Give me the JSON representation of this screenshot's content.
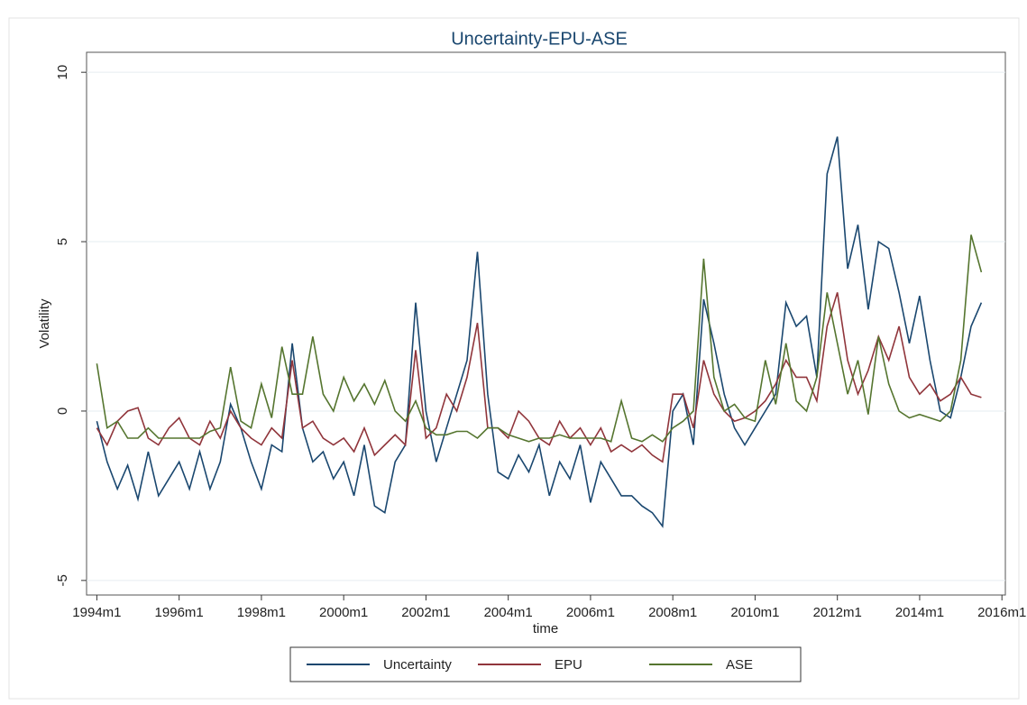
{
  "chart_data": {
    "type": "line",
    "title": "Uncertainty-EPU-ASE",
    "x_label": "time",
    "y_label": "Volatility",
    "x": [
      408,
      411,
      414,
      417,
      420,
      423,
      426,
      429,
      432,
      435,
      438,
      441,
      444,
      447,
      450,
      453,
      456,
      459,
      462,
      465,
      468,
      471,
      474,
      477,
      480,
      483,
      486,
      489,
      492,
      495,
      498,
      501,
      504,
      507,
      510,
      513,
      516,
      519,
      522,
      525,
      528,
      531,
      534,
      537,
      540,
      543,
      546,
      549,
      552,
      555,
      558,
      561,
      564,
      567,
      570,
      573,
      576,
      579,
      582,
      585,
      588,
      591,
      594,
      597,
      600,
      603,
      606,
      609,
      612,
      615,
      618,
      621,
      624,
      627,
      630,
      633,
      636,
      639,
      642,
      645,
      648,
      651,
      654,
      657,
      660,
      663,
      666
    ],
    "series": [
      {
        "name": "Uncertainty",
        "color": "#1a476f",
        "values": [
          -0.3,
          -1.5,
          -2.3,
          -1.6,
          -2.6,
          -1.2,
          -2.5,
          -2.0,
          -1.5,
          -2.3,
          -1.2,
          -2.3,
          -1.5,
          0.2,
          -0.5,
          -1.5,
          -2.3,
          -1.0,
          -1.2,
          2.0,
          -0.5,
          -1.5,
          -1.2,
          -2.0,
          -1.5,
          -2.5,
          -1.0,
          -2.8,
          -3.0,
          -1.5,
          -1.0,
          3.2,
          0.0,
          -1.5,
          -0.5,
          0.5,
          1.5,
          4.7,
          0.5,
          -1.8,
          -2.0,
          -1.3,
          -1.8,
          -1.0,
          -2.5,
          -1.5,
          -2.0,
          -1.0,
          -2.7,
          -1.5,
          -2.0,
          -2.5,
          -2.5,
          -2.8,
          -3.0,
          -3.4,
          0.0,
          0.5,
          -1.0,
          3.3,
          2.0,
          0.5,
          -0.5,
          -1.0,
          -0.5,
          0.0,
          0.5,
          3.2,
          2.5,
          2.8,
          1.0,
          7.0,
          8.1,
          4.2,
          5.5,
          3.0,
          5.0,
          4.8,
          3.5,
          2.0,
          3.4,
          1.5,
          0.0,
          -0.2,
          1.0,
          2.5,
          3.2
        ]
      },
      {
        "name": "EPU",
        "color": "#90353b",
        "values": [
          -0.5,
          -1.0,
          -0.3,
          0.0,
          0.1,
          -0.8,
          -1.0,
          -0.5,
          -0.2,
          -0.8,
          -1.0,
          -0.3,
          -0.8,
          0.0,
          -0.5,
          -0.8,
          -1.0,
          -0.5,
          -0.8,
          1.5,
          -0.5,
          -0.3,
          -0.8,
          -1.0,
          -0.8,
          -1.2,
          -0.5,
          -1.3,
          -1.0,
          -0.7,
          -1.0,
          1.8,
          -0.8,
          -0.5,
          0.5,
          0.0,
          1.0,
          2.6,
          -0.5,
          -0.5,
          -0.8,
          0.0,
          -0.3,
          -0.8,
          -1.0,
          -0.3,
          -0.8,
          -0.5,
          -1.0,
          -0.5,
          -1.2,
          -1.0,
          -1.2,
          -1.0,
          -1.3,
          -1.5,
          0.5,
          0.5,
          -0.5,
          1.5,
          0.5,
          0.0,
          -0.3,
          -0.2,
          0.0,
          0.3,
          0.8,
          1.5,
          1.0,
          1.0,
          0.3,
          2.5,
          3.5,
          1.5,
          0.5,
          1.2,
          2.2,
          1.5,
          2.5,
          1.0,
          0.5,
          0.8,
          0.3,
          0.5,
          1.0,
          0.5,
          0.4
        ]
      },
      {
        "name": "ASE",
        "color": "#55752f",
        "values": [
          1.4,
          -0.5,
          -0.3,
          -0.8,
          -0.8,
          -0.5,
          -0.8,
          -0.8,
          -0.8,
          -0.8,
          -0.8,
          -0.6,
          -0.5,
          1.3,
          -0.3,
          -0.5,
          0.8,
          -0.2,
          1.9,
          0.5,
          0.5,
          2.2,
          0.5,
          0.0,
          1.0,
          0.3,
          0.8,
          0.2,
          0.9,
          0.0,
          -0.3,
          0.3,
          -0.5,
          -0.7,
          -0.7,
          -0.6,
          -0.6,
          -0.8,
          -0.5,
          -0.5,
          -0.7,
          -0.8,
          -0.9,
          -0.8,
          -0.8,
          -0.7,
          -0.8,
          -0.8,
          -0.8,
          -0.8,
          -0.9,
          0.3,
          -0.8,
          -0.9,
          -0.7,
          -0.9,
          -0.5,
          -0.3,
          0.0,
          4.5,
          1.0,
          0.0,
          0.2,
          -0.2,
          -0.3,
          1.5,
          0.2,
          2.0,
          0.3,
          0.0,
          1.0,
          3.5,
          2.0,
          0.5,
          1.5,
          -0.1,
          2.2,
          0.8,
          0.0,
          -0.2,
          -0.1,
          -0.2,
          -0.3,
          0.0,
          1.5,
          5.2,
          4.1
        ]
      }
    ],
    "xlim": [
      405,
      673
    ],
    "ylim": [
      -5.43,
      10.59
    ],
    "xticks": [
      {
        "value": 408,
        "label": "1994m1"
      },
      {
        "value": 432,
        "label": "1996m1"
      },
      {
        "value": 456,
        "label": "1998m1"
      },
      {
        "value": 480,
        "label": "2000m1"
      },
      {
        "value": 504,
        "label": "2002m1"
      },
      {
        "value": 528,
        "label": "2004m1"
      },
      {
        "value": 552,
        "label": "2006m1"
      },
      {
        "value": 576,
        "label": "2008m1"
      },
      {
        "value": 600,
        "label": "2010m1"
      },
      {
        "value": 624,
        "label": "2012m1"
      },
      {
        "value": 648,
        "label": "2014m1"
      },
      {
        "value": 672,
        "label": "2016m1"
      }
    ],
    "yticks": [
      -5,
      0,
      5,
      10
    ],
    "grid": true
  }
}
